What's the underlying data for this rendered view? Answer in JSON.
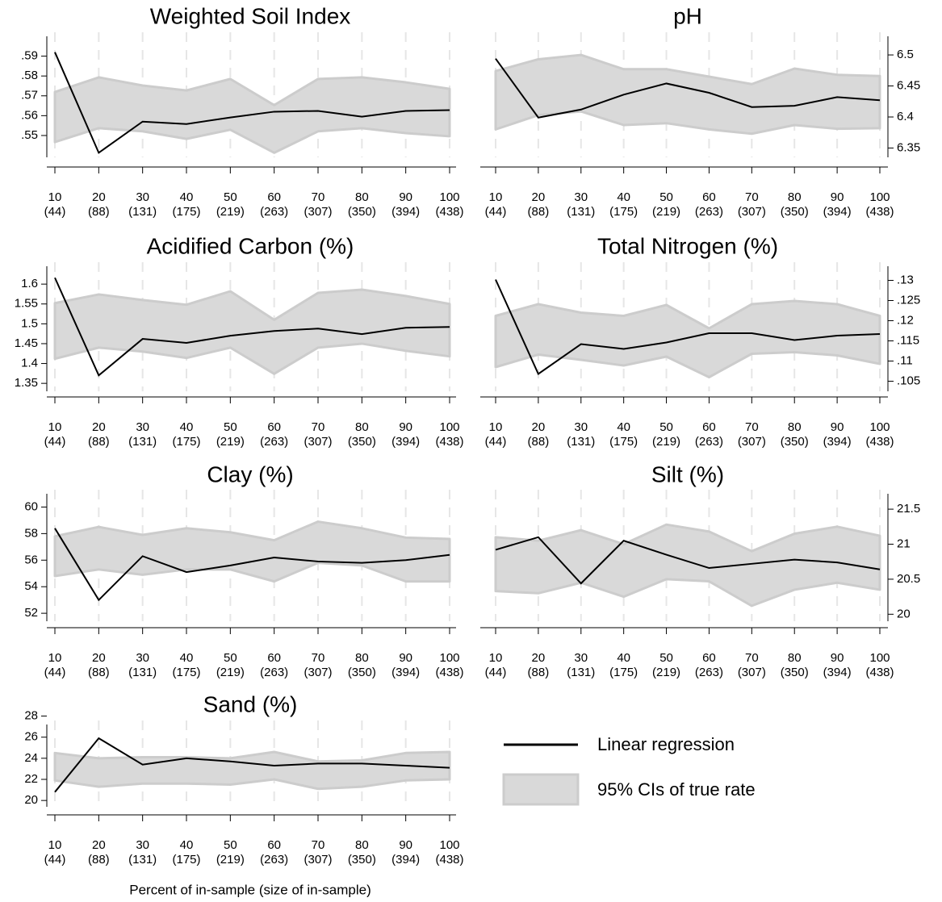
{
  "legend": [
    {
      "name": "Linear regression",
      "color": "#000000"
    },
    {
      "name": "95% CIs of true rate",
      "color": "#d9d9d9"
    }
  ],
  "x_label": "Percent of in-sample (size of in-sample)",
  "chart_data": [
    {
      "type": "line",
      "title": "Weighted Soil Index",
      "y_axis_side": "left",
      "grid": true,
      "categories": [
        "10",
        "20",
        "30",
        "40",
        "50",
        "60",
        "70",
        "80",
        "90",
        "100"
      ],
      "category_sizes": [
        "(44)",
        "(88)",
        "(131)",
        "(175)",
        "(219)",
        "(263)",
        "(307)",
        "(350)",
        "(394)",
        "(438)"
      ],
      "values": [
        0.592,
        0.5413,
        0.557,
        0.5558,
        0.5591,
        0.562,
        0.5624,
        0.5595,
        0.5624,
        0.5628
      ],
      "ci_upper": [
        0.5719,
        0.5793,
        0.5752,
        0.5727,
        0.5785,
        0.5653,
        0.5785,
        0.5793,
        0.5768,
        0.5735
      ],
      "ci_lower": [
        0.5467,
        0.5537,
        0.5521,
        0.5483,
        0.5529,
        0.5413,
        0.5521,
        0.5537,
        0.5512,
        0.5496
      ],
      "ylim": [
        0.539,
        0.6
      ],
      "yticks": [
        {
          "value": 0.55,
          "label": ".55"
        },
        {
          "value": 0.56,
          "label": ".56"
        },
        {
          "value": 0.57,
          "label": ".57"
        },
        {
          "value": 0.58,
          "label": ".58"
        },
        {
          "value": 0.59,
          "label": ".59"
        }
      ]
    },
    {
      "type": "line",
      "title": "pH",
      "y_axis_side": "right",
      "grid": true,
      "categories": [
        "10",
        "20",
        "30",
        "40",
        "50",
        "60",
        "70",
        "80",
        "90",
        "100"
      ],
      "category_sizes": [
        "(44)",
        "(88)",
        "(131)",
        "(175)",
        "(219)",
        "(263)",
        "(307)",
        "(350)",
        "(394)",
        "(438)"
      ],
      "values": [
        6.494,
        6.399,
        6.412,
        6.436,
        6.454,
        6.439,
        6.416,
        6.418,
        6.432,
        6.427
      ],
      "ci_upper": [
        6.474,
        6.493,
        6.5,
        6.477,
        6.477,
        6.465,
        6.453,
        6.478,
        6.468,
        6.466
      ],
      "ci_lower": [
        6.38,
        6.403,
        6.409,
        6.387,
        6.39,
        6.38,
        6.373,
        6.387,
        6.381,
        6.382
      ],
      "ylim": [
        6.335,
        6.53
      ],
      "yticks": [
        6.35,
        6.4,
        6.45,
        6.5
      ]
    },
    {
      "type": "line",
      "title": "Acidified Carbon (%)",
      "y_axis_side": "left",
      "grid": true,
      "categories": [
        "10",
        "20",
        "30",
        "40",
        "50",
        "60",
        "70",
        "80",
        "90",
        "100"
      ],
      "category_sizes": [
        "(44)",
        "(88)",
        "(131)",
        "(175)",
        "(219)",
        "(263)",
        "(307)",
        "(350)",
        "(394)",
        "(438)"
      ],
      "values": [
        1.616,
        1.37,
        1.462,
        1.452,
        1.47,
        1.482,
        1.488,
        1.474,
        1.49,
        1.492
      ],
      "ci_upper": [
        1.552,
        1.574,
        1.56,
        1.548,
        1.582,
        1.51,
        1.578,
        1.586,
        1.57,
        1.55
      ],
      "ci_lower": [
        1.412,
        1.44,
        1.43,
        1.414,
        1.44,
        1.374,
        1.44,
        1.45,
        1.432,
        1.418
      ],
      "ylim": [
        1.33,
        1.645
      ],
      "yticks": [
        1.35,
        1.4,
        1.45,
        1.5,
        1.55,
        1.6
      ]
    },
    {
      "type": "line",
      "title": "Total Nitrogen (%)",
      "y_axis_side": "right",
      "grid": true,
      "categories": [
        "10",
        "20",
        "30",
        "40",
        "50",
        "60",
        "70",
        "80",
        "90",
        "100"
      ],
      "category_sizes": [
        "(44)",
        "(88)",
        "(131)",
        "(175)",
        "(219)",
        "(263)",
        "(307)",
        "(350)",
        "(394)",
        "(438)"
      ],
      "values": [
        0.1302,
        0.1068,
        0.1142,
        0.113,
        0.1146,
        0.1169,
        0.1169,
        0.1152,
        0.1163,
        0.1167
      ],
      "ci_upper": [
        0.1212,
        0.1241,
        0.122,
        0.1212,
        0.1239,
        0.1181,
        0.1241,
        0.1249,
        0.1241,
        0.1212
      ],
      "ci_lower": [
        0.1085,
        0.1116,
        0.1103,
        0.1089,
        0.1111,
        0.106,
        0.1118,
        0.1122,
        0.1114,
        0.1093
      ],
      "ylim": [
        0.1025,
        0.1335
      ],
      "yticks": [
        {
          "value": 0.105,
          "label": ".105"
        },
        {
          "value": 0.11,
          "label": ".11"
        },
        {
          "value": 0.115,
          "label": ".115"
        },
        {
          "value": 0.12,
          "label": ".12"
        },
        {
          "value": 0.125,
          "label": ".125"
        },
        {
          "value": 0.13,
          "label": ".13"
        }
      ]
    },
    {
      "type": "line",
      "title": "Clay (%)",
      "y_axis_side": "left",
      "grid": true,
      "categories": [
        "10",
        "20",
        "30",
        "40",
        "50",
        "60",
        "70",
        "80",
        "90",
        "100"
      ],
      "category_sizes": [
        "(44)",
        "(88)",
        "(131)",
        "(175)",
        "(219)",
        "(263)",
        "(307)",
        "(350)",
        "(394)",
        "(438)"
      ],
      "values": [
        58.4,
        53.0,
        56.3,
        55.1,
        55.6,
        56.2,
        55.9,
        55.8,
        56.0,
        56.4
      ],
      "ci_upper": [
        57.8,
        58.5,
        57.9,
        58.4,
        58.1,
        57.5,
        58.9,
        58.4,
        57.7,
        57.6
      ],
      "ci_lower": [
        54.8,
        55.3,
        54.9,
        55.3,
        55.3,
        54.4,
        55.8,
        55.6,
        54.4,
        54.4
      ],
      "ylim": [
        51.4,
        61
      ],
      "yticks": [
        52,
        54,
        56,
        58,
        60
      ]
    },
    {
      "type": "line",
      "title": "Silt (%)",
      "y_axis_side": "right",
      "grid": true,
      "categories": [
        "10",
        "20",
        "30",
        "40",
        "50",
        "60",
        "70",
        "80",
        "90",
        "100"
      ],
      "category_sizes": [
        "(44)",
        "(88)",
        "(131)",
        "(175)",
        "(219)",
        "(263)",
        "(307)",
        "(350)",
        "(394)",
        "(438)"
      ],
      "values": [
        20.92,
        21.1,
        20.44,
        21.05,
        20.85,
        20.66,
        20.72,
        20.78,
        20.74,
        20.64
      ],
      "ci_upper": [
        21.1,
        21.05,
        21.2,
        21.0,
        21.28,
        21.18,
        20.9,
        21.15,
        21.25,
        21.12
      ],
      "ci_lower": [
        20.33,
        20.3,
        20.45,
        20.25,
        20.5,
        20.47,
        20.12,
        20.35,
        20.45,
        20.35
      ],
      "ylim": [
        19.9,
        21.72
      ],
      "yticks": [
        20,
        20.5,
        21,
        21.5
      ]
    },
    {
      "type": "line",
      "title": "Sand (%)",
      "y_axis_side": "left",
      "grid": true,
      "categories": [
        "10",
        "20",
        "30",
        "40",
        "50",
        "60",
        "70",
        "80",
        "90",
        "100"
      ],
      "category_sizes": [
        "(44)",
        "(88)",
        "(131)",
        "(175)",
        "(219)",
        "(263)",
        "(307)",
        "(350)",
        "(394)",
        "(438)"
      ],
      "values": [
        20.8,
        25.9,
        23.4,
        24.0,
        23.7,
        23.3,
        23.5,
        23.5,
        23.3,
        23.1
      ],
      "ci_upper": [
        24.5,
        24.0,
        24.1,
        24.1,
        24.0,
        24.6,
        23.7,
        23.8,
        24.5,
        24.6
      ],
      "ci_lower": [
        21.9,
        21.3,
        21.6,
        21.6,
        21.5,
        22.0,
        21.1,
        21.3,
        21.9,
        22.0
      ],
      "ylim": [
        19.4,
        27.2
      ],
      "yticks": [
        20,
        22,
        24,
        26,
        28
      ]
    }
  ]
}
